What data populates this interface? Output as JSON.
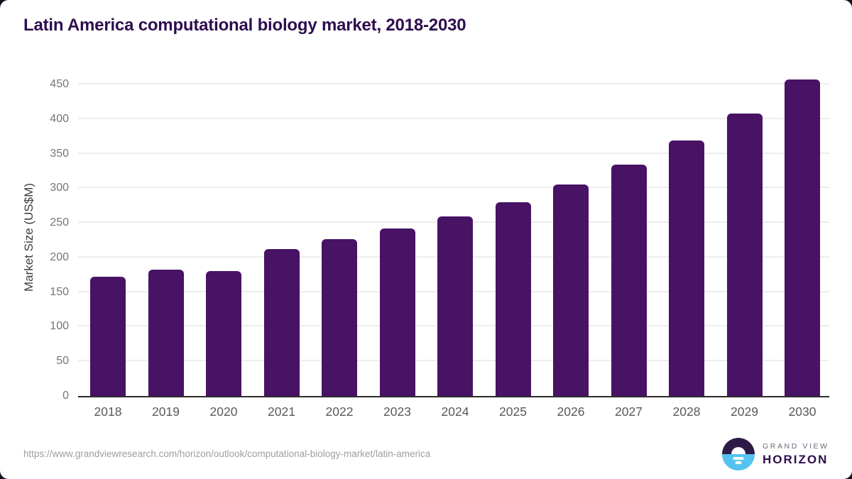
{
  "page": {
    "title": "Latin America computational biology market, 2018-2030"
  },
  "chart_data": {
    "type": "bar",
    "title": "Latin America computational biology market, 2018-2030",
    "categories": [
      "2018",
      "2019",
      "2020",
      "2021",
      "2022",
      "2023",
      "2024",
      "2025",
      "2026",
      "2027",
      "2028",
      "2029",
      "2030"
    ],
    "values": [
      172,
      182,
      180,
      212,
      227,
      242,
      259,
      280,
      305,
      334,
      369,
      408,
      457
    ],
    "xlabel": "",
    "ylabel": "Market Size (US$M)",
    "ylim": [
      0,
      450
    ],
    "yticks": [
      0,
      50,
      100,
      150,
      200,
      250,
      300,
      350,
      400,
      450
    ],
    "grid": "horizontal",
    "legend": "none",
    "bar_color": "#481265"
  },
  "footer": {
    "source_url": "https://www.grandviewresearch.com/horizon/outlook/computational-biology-market/latin-america",
    "logo": {
      "line1": "GRAND VIEW",
      "line2": "HORIZON",
      "icon": "horizon-sun-icon",
      "icon_colors": {
        "top": "#2E1A47",
        "bottom": "#55C3F0",
        "sun": "#FFFFFF"
      }
    }
  },
  "colors": {
    "title_text": "#2E0D4E",
    "bar": "#481265",
    "axis_line": "#2B2B2B",
    "gridline": "#EDEDED",
    "ytick_label": "#757575",
    "xtick_label": "#595959",
    "axis_title": "#3D3D3D",
    "url_text": "#9E9E9E"
  }
}
